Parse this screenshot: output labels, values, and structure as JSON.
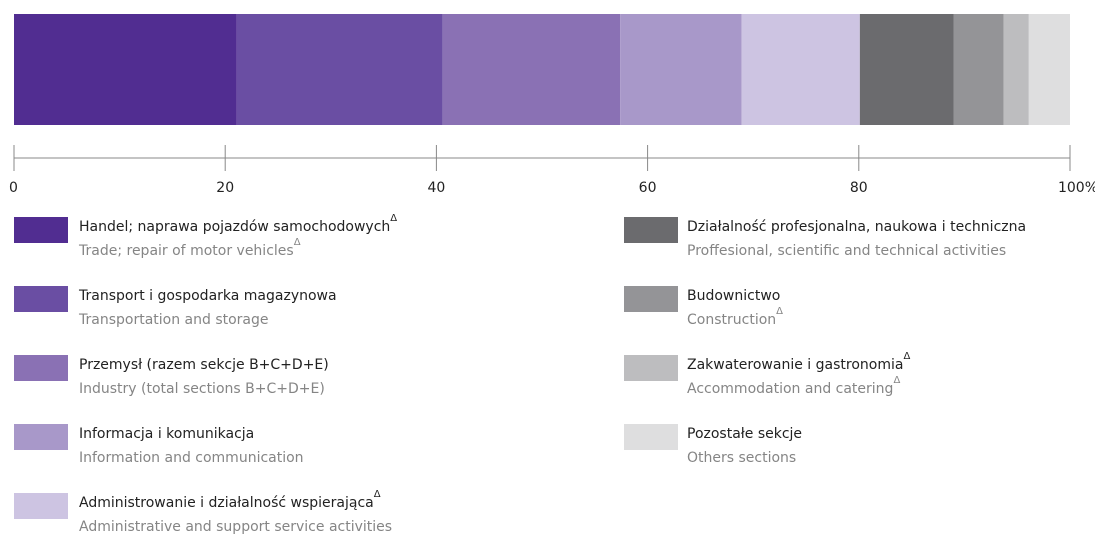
{
  "chart_data": {
    "type": "stacked_bar_100",
    "xlim": [
      0,
      100
    ],
    "xticks": [
      0,
      20,
      40,
      60,
      80,
      {
        "value": 100,
        "label": "100%"
      }
    ],
    "series": [
      {
        "name": "Handel; naprawa pojazdów samochodowych",
        "note": "Δ",
        "name_en": "Trade; repair of motor vehicles",
        "note_en": "Δ",
        "color": "#512d91",
        "values": [
          21.1
        ]
      },
      {
        "name": "Transport i gospodarka magazynowa",
        "name_en": "Transportation and storage",
        "color": "#6a4ea3",
        "values": [
          19.5
        ]
      },
      {
        "name": "Przemysł (razem sekcje B+C+D+E)",
        "name_en": "Industry (total sections B+C+D+E)",
        "color": "#8a71b4",
        "values": [
          16.8
        ]
      },
      {
        "name": "Informacja i komunikacja",
        "name_en": "Information and communication",
        "color": "#a898c9",
        "values": [
          11.5
        ]
      },
      {
        "name": "Administrowanie i działalność wspierająca",
        "note": "Δ",
        "name_en": "Administrative and support service activities",
        "color": "#cdc4e2",
        "values": [
          11.2
        ]
      },
      {
        "name": "Działalność profesjonalna, naukowa i techniczna",
        "name_en": "Proffesional, scientific and technical activities",
        "color": "#6b6b6e",
        "values": [
          8.9
        ]
      },
      {
        "name": "Budownictwo",
        "name_en": "Construction",
        "note_en": "Δ",
        "color": "#949497",
        "values": [
          4.7
        ]
      },
      {
        "name": "Zakwaterowanie i gastronomia",
        "note": "Δ",
        "name_en": "Accommodation and catering",
        "note_en": "Δ",
        "color": "#bdbdbf",
        "values": [
          2.4
        ]
      },
      {
        "name": "Pozostałe sekcje",
        "name_en": "Others sections",
        "color": "#dededf",
        "values": [
          3.9
        ]
      }
    ]
  }
}
